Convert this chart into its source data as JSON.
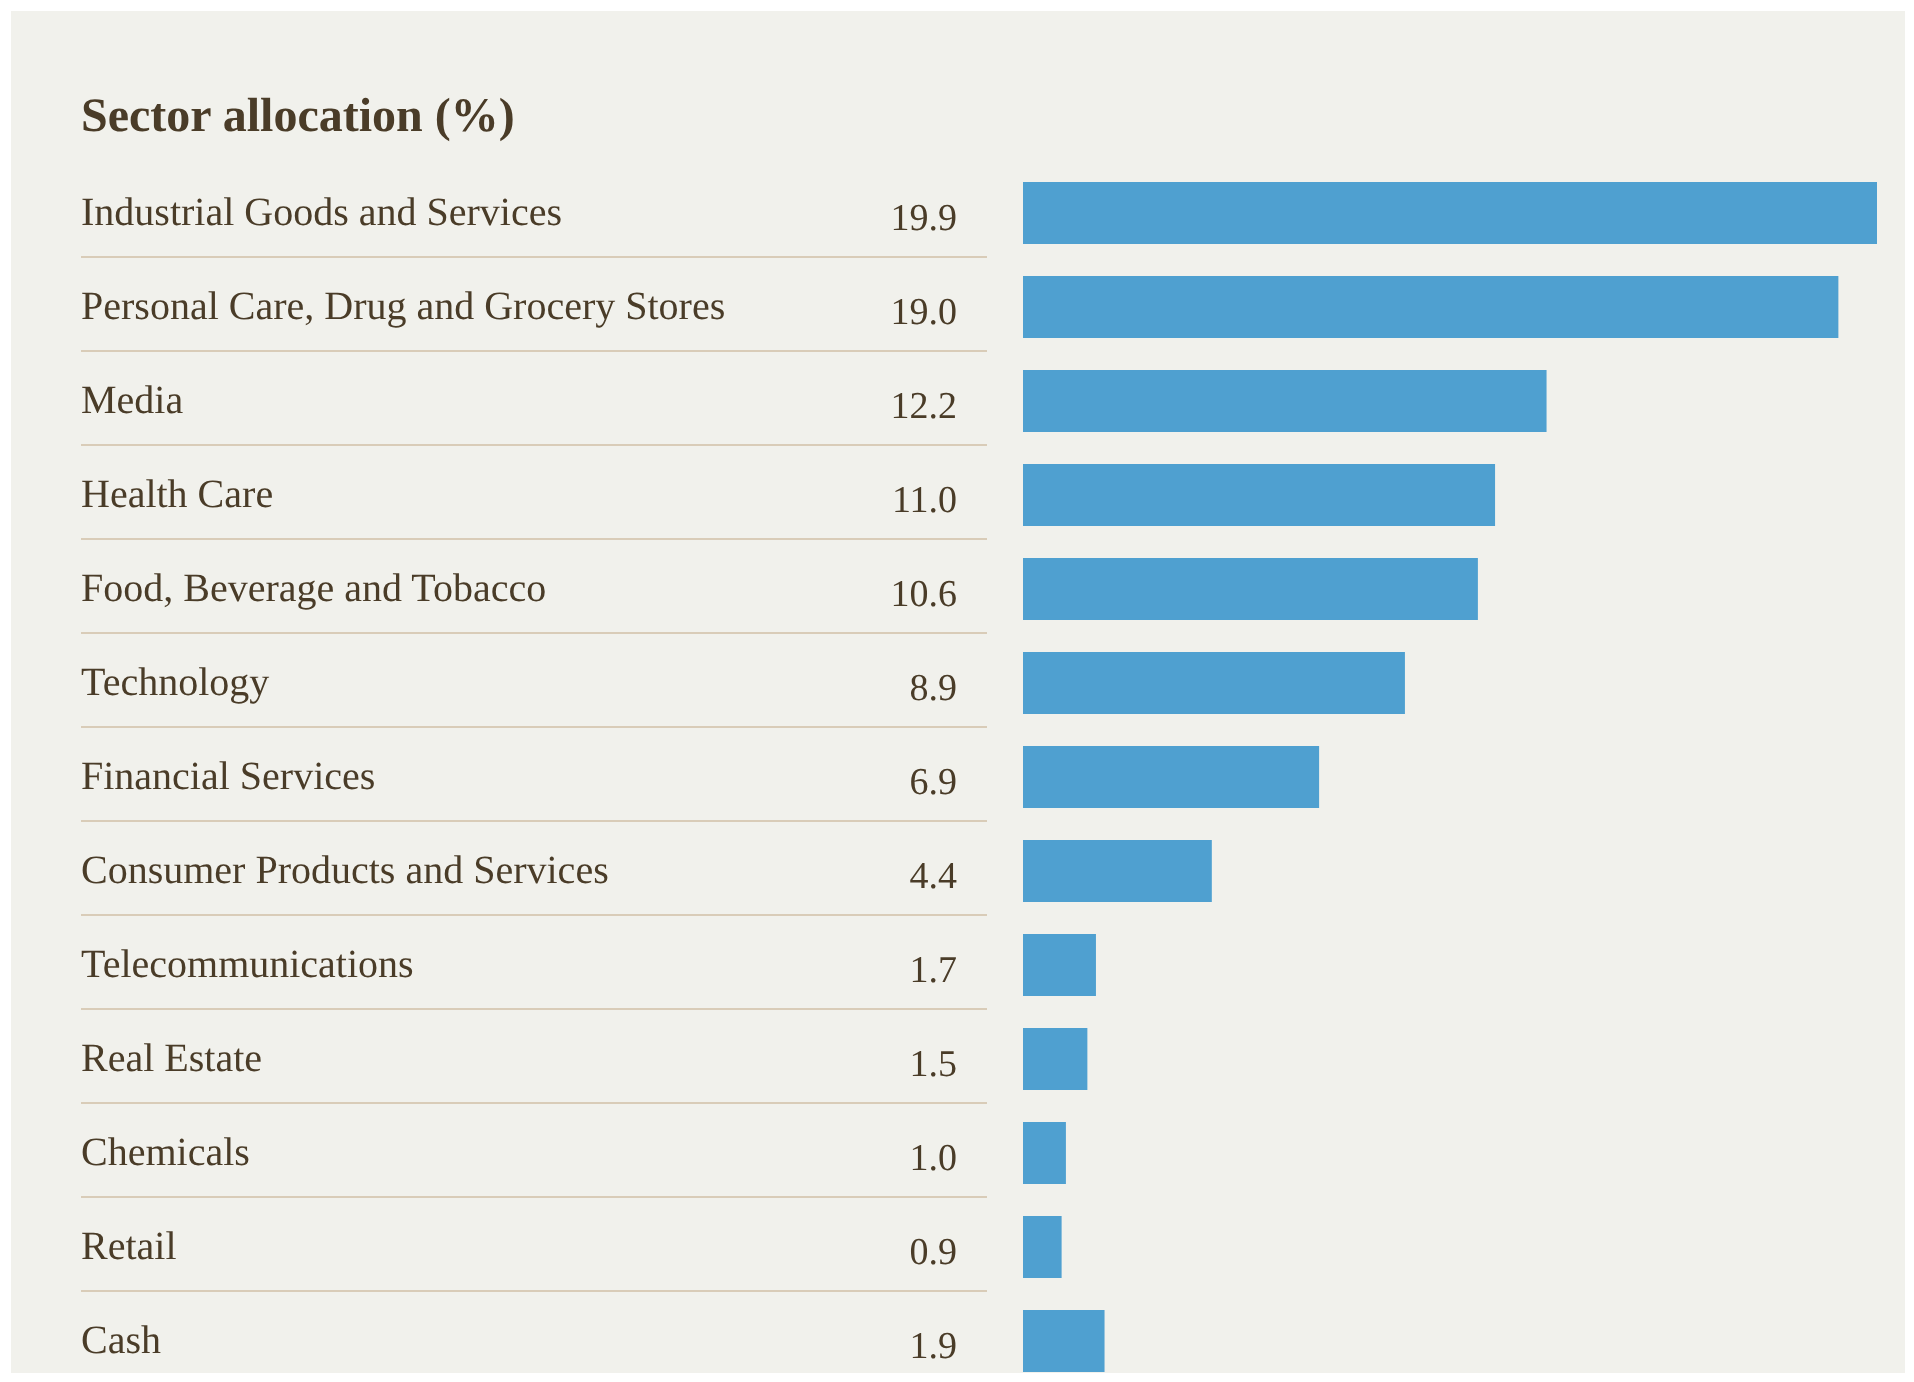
{
  "chart_data": {
    "type": "bar",
    "orientation": "horizontal",
    "title": "Sector allocation (%)",
    "categories": [
      "Industrial Goods and Services",
      "Personal Care, Drug and Grocery Stores",
      "Media",
      "Health Care",
      "Food, Beverage and Tobacco",
      "Technology",
      "Financial Services",
      "Consumer Products and Services",
      "Telecommunications",
      "Real Estate",
      "Chemicals",
      "Retail",
      "Cash"
    ],
    "values": [
      19.9,
      19.0,
      12.2,
      11.0,
      10.6,
      8.9,
      6.9,
      4.4,
      1.7,
      1.5,
      1.0,
      0.9,
      1.9
    ],
    "value_labels": [
      "19.9",
      "19.0",
      "12.2",
      "11.0",
      "10.6",
      "8.9",
      "6.9",
      "4.4",
      "1.7",
      "1.5",
      "1.0",
      "0.9",
      "1.9"
    ],
    "color": "#4fa0d0",
    "grid": false
  }
}
